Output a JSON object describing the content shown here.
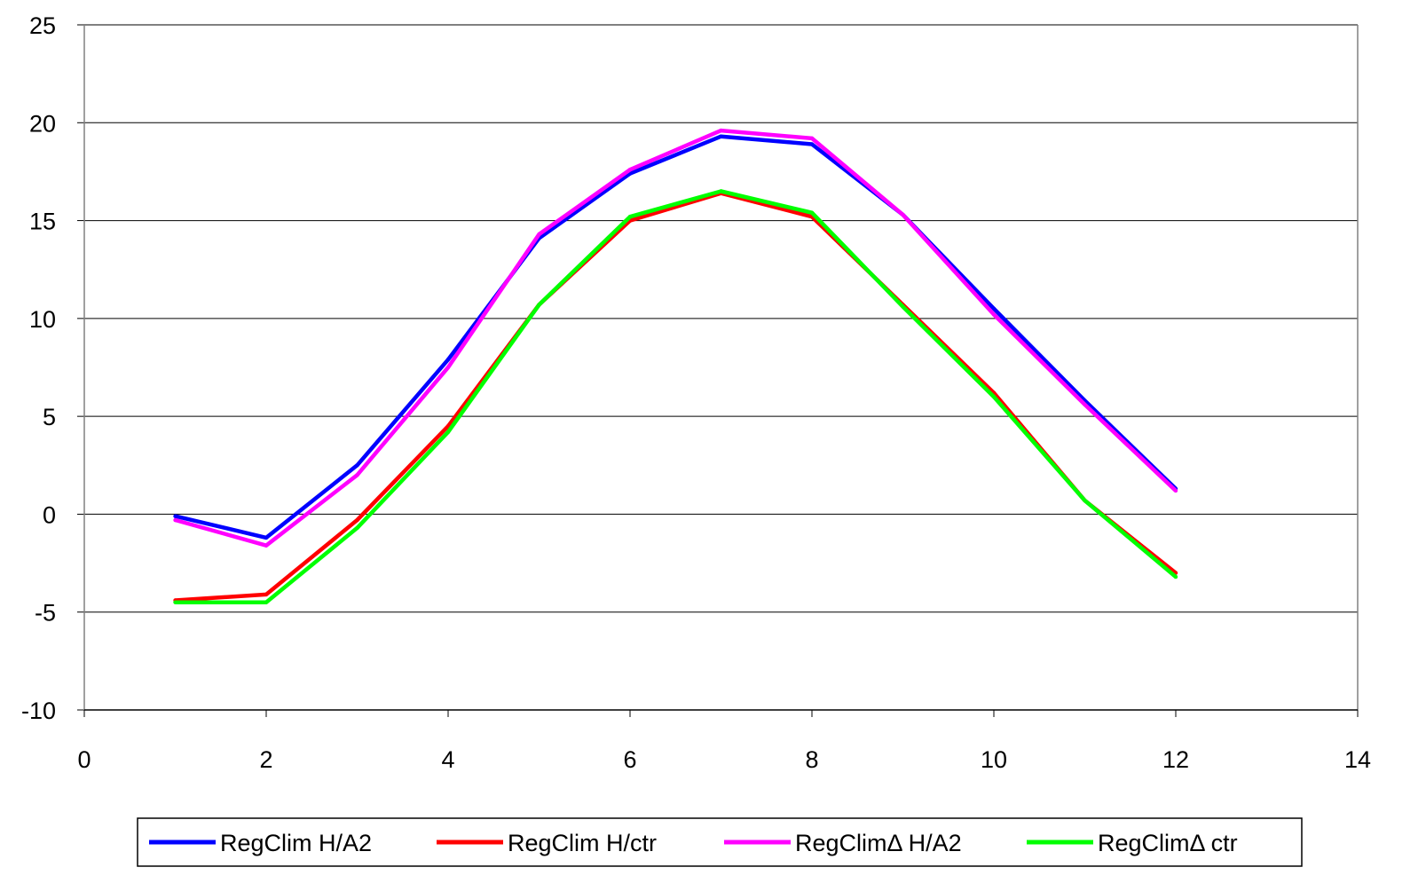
{
  "chart_data": {
    "type": "line",
    "title": "",
    "xlabel": "",
    "ylabel": "",
    "xlim": [
      0,
      14
    ],
    "ylim": [
      -10,
      25
    ],
    "x_ticks": [
      0,
      2,
      4,
      6,
      8,
      10,
      12,
      14
    ],
    "y_ticks": [
      -10,
      -5,
      0,
      5,
      10,
      15,
      20,
      25
    ],
    "x_tick_labels": [
      "0",
      "2",
      "4",
      "6",
      "8",
      "10",
      "12",
      "14"
    ],
    "y_tick_labels": [
      "-10",
      "-5",
      "0",
      "5",
      "10",
      "15",
      "20",
      "25"
    ],
    "grid": "horizontal",
    "legend_position": "bottom",
    "x": [
      1,
      2,
      3,
      4,
      5,
      6,
      7,
      8,
      9,
      10,
      11,
      12
    ],
    "series": [
      {
        "name": "RegClim H/A2",
        "color": "#0000ff",
        "values": [
          -0.1,
          -1.2,
          2.5,
          7.9,
          14.1,
          17.4,
          19.3,
          18.9,
          15.3,
          10.5,
          5.8,
          1.3
        ]
      },
      {
        "name": "RegClim H/ctr",
        "color": "#ff0000",
        "values": [
          -4.4,
          -4.1,
          -0.3,
          4.5,
          10.7,
          15.0,
          16.4,
          15.2,
          10.7,
          6.2,
          0.7,
          -3.0
        ]
      },
      {
        "name": "RegClimΔ H/A2",
        "color": "#ff00ff",
        "values": [
          -0.3,
          -1.6,
          2.0,
          7.5,
          14.3,
          17.6,
          19.6,
          19.2,
          15.3,
          10.2,
          5.6,
          1.2
        ]
      },
      {
        "name": "RegClimΔ ctr",
        "color": "#00ff00",
        "values": [
          -4.5,
          -4.5,
          -0.7,
          4.2,
          10.7,
          15.2,
          16.5,
          15.4,
          10.6,
          6.0,
          0.7,
          -3.2
        ]
      }
    ]
  }
}
